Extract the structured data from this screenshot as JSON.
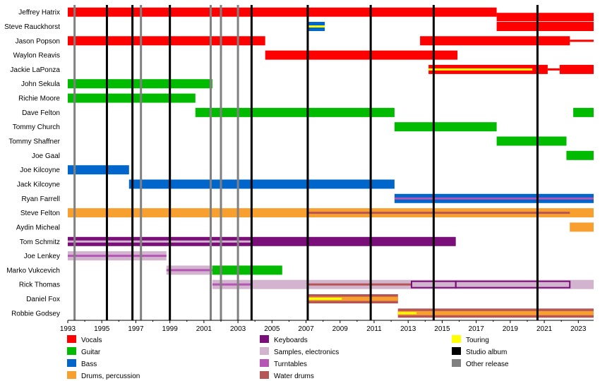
{
  "chart_data": {
    "type": "timeline",
    "title": "",
    "xlabel": "",
    "ylabel": "",
    "xlim": [
      1993,
      2023.9
    ],
    "x_ticks": [
      1993,
      1995,
      1997,
      1999,
      2001,
      2003,
      2005,
      2007,
      2009,
      2011,
      2013,
      2015,
      2017,
      2019,
      2021,
      2023
    ],
    "members": [
      "Jeffrey Hatrix",
      "Steve Rauckhorst",
      "Jason Popson",
      "Waylon Reavis",
      "Jackie LaPonza",
      "John Sekula",
      "Richie Moore",
      "Dave Felton",
      "Tommy Church",
      "Tommy Shaffner",
      "Joe Gaal",
      "Joe Kilcoyne",
      "Jack Kilcoyne",
      "Ryan Farrell",
      "Steve Felton",
      "Aydin Micheal",
      "Tom Schmitz",
      "Joe Lenkey",
      "Marko Vukcevich",
      "Rick Thomas",
      "Daniel Fox",
      "Robbie Godsey"
    ],
    "roles": {
      "vocals": "#ff0000",
      "guitar": "#00bb00",
      "bass": "#0066cc",
      "drums": "#f7a030",
      "keyboards": "#7a0f7a",
      "samples": "#d2b4cf",
      "turntables": "#b555b5",
      "water_drums": "#b75555",
      "touring": "#ffff00"
    },
    "bars": [
      {
        "member": 0,
        "role": "vocals",
        "start": 1993,
        "end": 2018.2
      },
      {
        "member": 0,
        "role": "vocals",
        "start": 2018.2,
        "end": 2023.9,
        "lane": "low"
      },
      {
        "member": 1,
        "role": "vocals",
        "start": 2018.2,
        "end": 2023.9
      },
      {
        "member": 1,
        "role": "bass",
        "start": 2007.1,
        "end": 2008.1
      },
      {
        "member": 1,
        "role": "touring",
        "start": 2007.1,
        "end": 2008.1,
        "accent": true
      },
      {
        "member": 2,
        "role": "vocals",
        "start": 1993,
        "end": 2004.6
      },
      {
        "member": 2,
        "role": "vocals",
        "start": 2013.7,
        "end": 2022.5
      },
      {
        "member": 2,
        "role": "vocals",
        "start": 2022.5,
        "end": 2023.9,
        "thin": true
      },
      {
        "member": 3,
        "role": "vocals",
        "start": 2004.6,
        "end": 2015.9
      },
      {
        "member": 4,
        "role": "vocals",
        "start": 2014.2,
        "end": 2021.2
      },
      {
        "member": 4,
        "role": "touring",
        "start": 2014.2,
        "end": 2020.3,
        "accent": true
      },
      {
        "member": 4,
        "role": "vocals",
        "start": 2021.9,
        "end": 2023.9
      },
      {
        "member": 4,
        "role": "vocals",
        "start": 2021.2,
        "end": 2021.9,
        "thin": true
      },
      {
        "member": 5,
        "role": "guitar",
        "start": 1993,
        "end": 2001.5
      },
      {
        "member": 6,
        "role": "guitar",
        "start": 1993,
        "end": 2000.5
      },
      {
        "member": 7,
        "role": "guitar",
        "start": 2000.5,
        "end": 2012.2
      },
      {
        "member": 7,
        "role": "guitar",
        "start": 2022.7,
        "end": 2023.9
      },
      {
        "member": 8,
        "role": "guitar",
        "start": 2012.2,
        "end": 2018.2
      },
      {
        "member": 9,
        "role": "guitar",
        "start": 2018.2,
        "end": 2022.3
      },
      {
        "member": 10,
        "role": "guitar",
        "start": 2022.3,
        "end": 2023.9
      },
      {
        "member": 11,
        "role": "bass",
        "start": 1993,
        "end": 1996.6
      },
      {
        "member": 12,
        "role": "bass",
        "start": 1996.6,
        "end": 2012.2
      },
      {
        "member": 13,
        "role": "bass",
        "start": 2012.2,
        "end": 2023.9
      },
      {
        "member": 13,
        "role": "turntables",
        "start": 2012.2,
        "end": 2023.9,
        "accent": true
      },
      {
        "member": 14,
        "role": "drums",
        "start": 1993,
        "end": 2023.9
      },
      {
        "member": 14,
        "role": "water_drums",
        "start": 2007.1,
        "end": 2022.5,
        "accent": true
      },
      {
        "member": 15,
        "role": "drums",
        "start": 2022.5,
        "end": 2023.9
      },
      {
        "member": 16,
        "role": "keyboards",
        "start": 1993,
        "end": 2015.8
      },
      {
        "member": 16,
        "role": "samples",
        "start": 1993,
        "end": 2003.8,
        "accent": true
      },
      {
        "member": 17,
        "role": "samples",
        "start": 1993,
        "end": 1998.8
      },
      {
        "member": 17,
        "role": "turntables",
        "start": 1993,
        "end": 1998.8,
        "accent": true
      },
      {
        "member": 18,
        "role": "samples",
        "start": 1998.8,
        "end": 2001.5
      },
      {
        "member": 18,
        "role": "turntables",
        "start": 1998.8,
        "end": 2001.5,
        "accent": true
      },
      {
        "member": 18,
        "role": "guitar",
        "start": 2001.5,
        "end": 2005.6
      },
      {
        "member": 19,
        "role": "samples",
        "start": 2001.5,
        "end": 2023.9
      },
      {
        "member": 19,
        "role": "turntables",
        "start": 2001.5,
        "end": 2003.8,
        "accent": true
      },
      {
        "member": 19,
        "role": "water_drums",
        "start": 2007.1,
        "end": 2013.2,
        "accent": true
      },
      {
        "member": 19,
        "role": "keyboards",
        "start": 2013.2,
        "end": 2015.8,
        "outline": true
      },
      {
        "member": 19,
        "role": "keyboards",
        "start": 2015.8,
        "end": 2022.5,
        "outline": true
      },
      {
        "member": 20,
        "role": "water_drums",
        "start": 2007.1,
        "end": 2012.4
      },
      {
        "member": 20,
        "role": "drums",
        "start": 2007.1,
        "end": 2012.4,
        "inner": true
      },
      {
        "member": 20,
        "role": "touring",
        "start": 2007.1,
        "end": 2009.1,
        "accent": true
      },
      {
        "member": 21,
        "role": "water_drums",
        "start": 2012.4,
        "end": 2023.9
      },
      {
        "member": 21,
        "role": "drums",
        "start": 2012.4,
        "end": 2023.9,
        "inner": true
      },
      {
        "member": 21,
        "role": "touring",
        "start": 2012.4,
        "end": 2013.5,
        "accent": true
      }
    ],
    "studio_albums": [
      1995.3,
      1996.8,
      1999.0,
      2003.8,
      2007.1,
      2010.8,
      2014.5,
      2020.6
    ],
    "other_releases": [
      1993.4,
      1997.3,
      2001.4,
      2002.0,
      2003.0
    ]
  },
  "legend": [
    {
      "key": "vocals",
      "label": "Vocals",
      "color": "#ff0000"
    },
    {
      "key": "guitar",
      "label": "Guitar",
      "color": "#00bb00"
    },
    {
      "key": "bass",
      "label": "Bass",
      "color": "#0066cc"
    },
    {
      "key": "drums",
      "label": "Drums, percussion",
      "color": "#f7a030"
    },
    {
      "key": "keyboards",
      "label": "Keyboards",
      "color": "#7a0f7a"
    },
    {
      "key": "samples",
      "label": "Samples, electronics",
      "color": "#d2b4cf"
    },
    {
      "key": "turntables",
      "label": "Turntables",
      "color": "#b555b5"
    },
    {
      "key": "water_drums",
      "label": "Water drums",
      "color": "#b75555"
    },
    {
      "key": "touring",
      "label": "Touring",
      "color": "#ffff00"
    },
    {
      "key": "studio_album",
      "label": "Studio album",
      "color": "#000000"
    },
    {
      "key": "other_release",
      "label": "Other release",
      "color": "#808080"
    }
  ]
}
